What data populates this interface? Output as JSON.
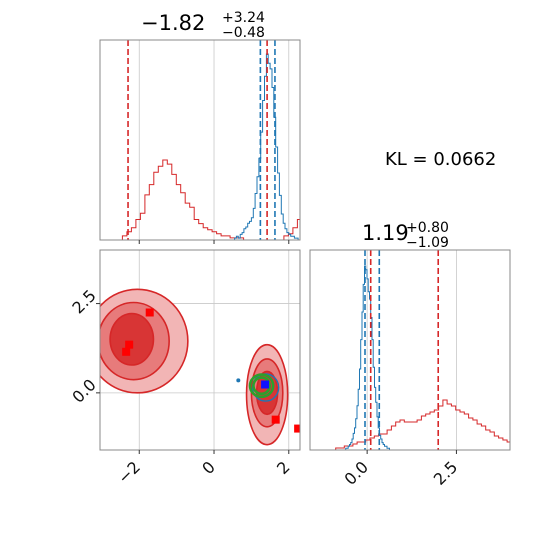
{
  "chart_data": {
    "type": "corner",
    "colors": {
      "red": "#d62728",
      "blue": "#1f77b4",
      "green": "#2ca02c",
      "red_fill_light": "#f2b5b5",
      "red_fill_mid": "#e77b7b",
      "red_fill_dark": "#d83535",
      "scatter_red": "#ff0000",
      "scatter_blue": "#1010ff"
    },
    "params": [
      {
        "title": {
          "median": "−1.82",
          "upper": "+3.24",
          "lower": "−0.48"
        },
        "range": [
          -3.05,
          2.3
        ],
        "ticks": [
          -2,
          0,
          2
        ],
        "tick_labels": [
          "−2",
          "0",
          "2"
        ],
        "red_lines": [
          -2.3,
          1.42
        ],
        "blue_lines": [
          1.24,
          1.63
        ],
        "red_hist": {
          "start": -3.05,
          "step": 0.12,
          "counts": [
            0,
            0,
            0,
            0,
            0,
            2,
            4,
            6,
            10,
            13,
            22,
            27,
            33,
            36,
            39,
            37,
            32,
            27,
            23,
            18,
            16,
            10,
            8,
            6,
            5,
            4,
            3,
            2,
            2,
            1,
            1,
            1,
            0,
            0,
            0,
            0,
            0,
            0,
            0,
            0,
            0,
            2,
            3,
            6,
            10,
            15,
            18,
            16,
            14,
            14,
            12,
            9,
            6,
            6,
            5,
            3,
            3,
            2,
            2,
            1,
            0,
            0,
            0,
            0,
            0,
            0
          ]
        },
        "blue_hist": {
          "start": 0.55,
          "step": 0.05,
          "counts": [
            1,
            2,
            1,
            3,
            4,
            6,
            7,
            9,
            10,
            12,
            17,
            25,
            34,
            44,
            58,
            75,
            88,
            100,
            95,
            92,
            82,
            66,
            50,
            36,
            24,
            14,
            9,
            6,
            4,
            3,
            2,
            2,
            1,
            1
          ]
        }
      },
      {
        "title": {
          "median": "1.19",
          "upper": "+0.80",
          "lower": "−1.09"
        },
        "range": [
          -1.6,
          4.0
        ],
        "ticks": [
          0.0,
          2.5
        ],
        "tick_labels": [
          "0.0",
          "2.5"
        ],
        "red_lines": [
          0.1,
          1.99
        ],
        "blue_lines": [
          -0.06,
          0.34
        ],
        "red_hist": {
          "start": -1.6,
          "step": 0.12,
          "counts": [
            0,
            0,
            0,
            0,
            0,
            0,
            1,
            1,
            2,
            2,
            3,
            4,
            4,
            5,
            6,
            7,
            8,
            8,
            10,
            12,
            14,
            15,
            14,
            14,
            14,
            15,
            17,
            18,
            19,
            20,
            22,
            25,
            23,
            22,
            20,
            19,
            18,
            16,
            15,
            13,
            12,
            10,
            9,
            7,
            6,
            5,
            4,
            3,
            3,
            2,
            2,
            1,
            1,
            0
          ]
        },
        "blue_hist": {
          "start": -0.6,
          "step": 0.035,
          "counts": [
            1,
            1,
            2,
            3,
            4,
            6,
            9,
            12,
            17,
            24,
            33,
            44,
            60,
            75,
            90,
            100,
            98,
            93,
            86,
            82,
            72,
            60,
            45,
            34,
            26,
            18,
            12,
            8,
            6,
            4,
            3,
            2,
            2,
            1,
            1
          ]
        }
      }
    ],
    "kl_text": "KL = 0.0662",
    "y_tick_labels": [
      "0.0",
      "2.5"
    ],
    "scatter2d": {
      "red_contours": [
        {
          "cx": -2.05,
          "cy": 1.45,
          "rx": 1.35,
          "ry": 1.45,
          "level": "light"
        },
        {
          "cx": -2.15,
          "cy": 1.45,
          "rx": 0.95,
          "ry": 1.08,
          "level": "mid"
        },
        {
          "cx": -2.2,
          "cy": 1.5,
          "rx": 0.58,
          "ry": 0.72,
          "level": "dark"
        },
        {
          "cx": 1.42,
          "cy": -0.05,
          "rx": 0.55,
          "ry": 1.4,
          "level": "light"
        },
        {
          "cx": 1.42,
          "cy": 0.0,
          "rx": 0.42,
          "ry": 0.95,
          "level": "mid"
        },
        {
          "cx": 1.42,
          "cy": 0.0,
          "rx": 0.28,
          "ry": 0.6,
          "level": "dark"
        }
      ],
      "blue_contour": {
        "cx": 1.38,
        "cy": 0.15,
        "rx": 0.35,
        "ry": 0.38
      },
      "green_contours": [
        {
          "cx": 1.7,
          "cy": 0.2,
          "rx": 0.5,
          "ry": 0.52
        },
        {
          "cx": 1.7,
          "cy": 0.2,
          "rx": 0.35,
          "ry": 0.38
        }
      ],
      "red_markers": [
        {
          "x": -1.72,
          "y": 2.25
        },
        {
          "x": -2.27,
          "y": 1.35
        },
        {
          "x": -2.35,
          "y": 1.15
        },
        {
          "x": 1.65,
          "y": -0.75
        },
        {
          "x": 2.25,
          "y": -1.0
        }
      ],
      "blue_markers": [
        {
          "x": 1.58,
          "y": 0.15
        }
      ]
    }
  }
}
